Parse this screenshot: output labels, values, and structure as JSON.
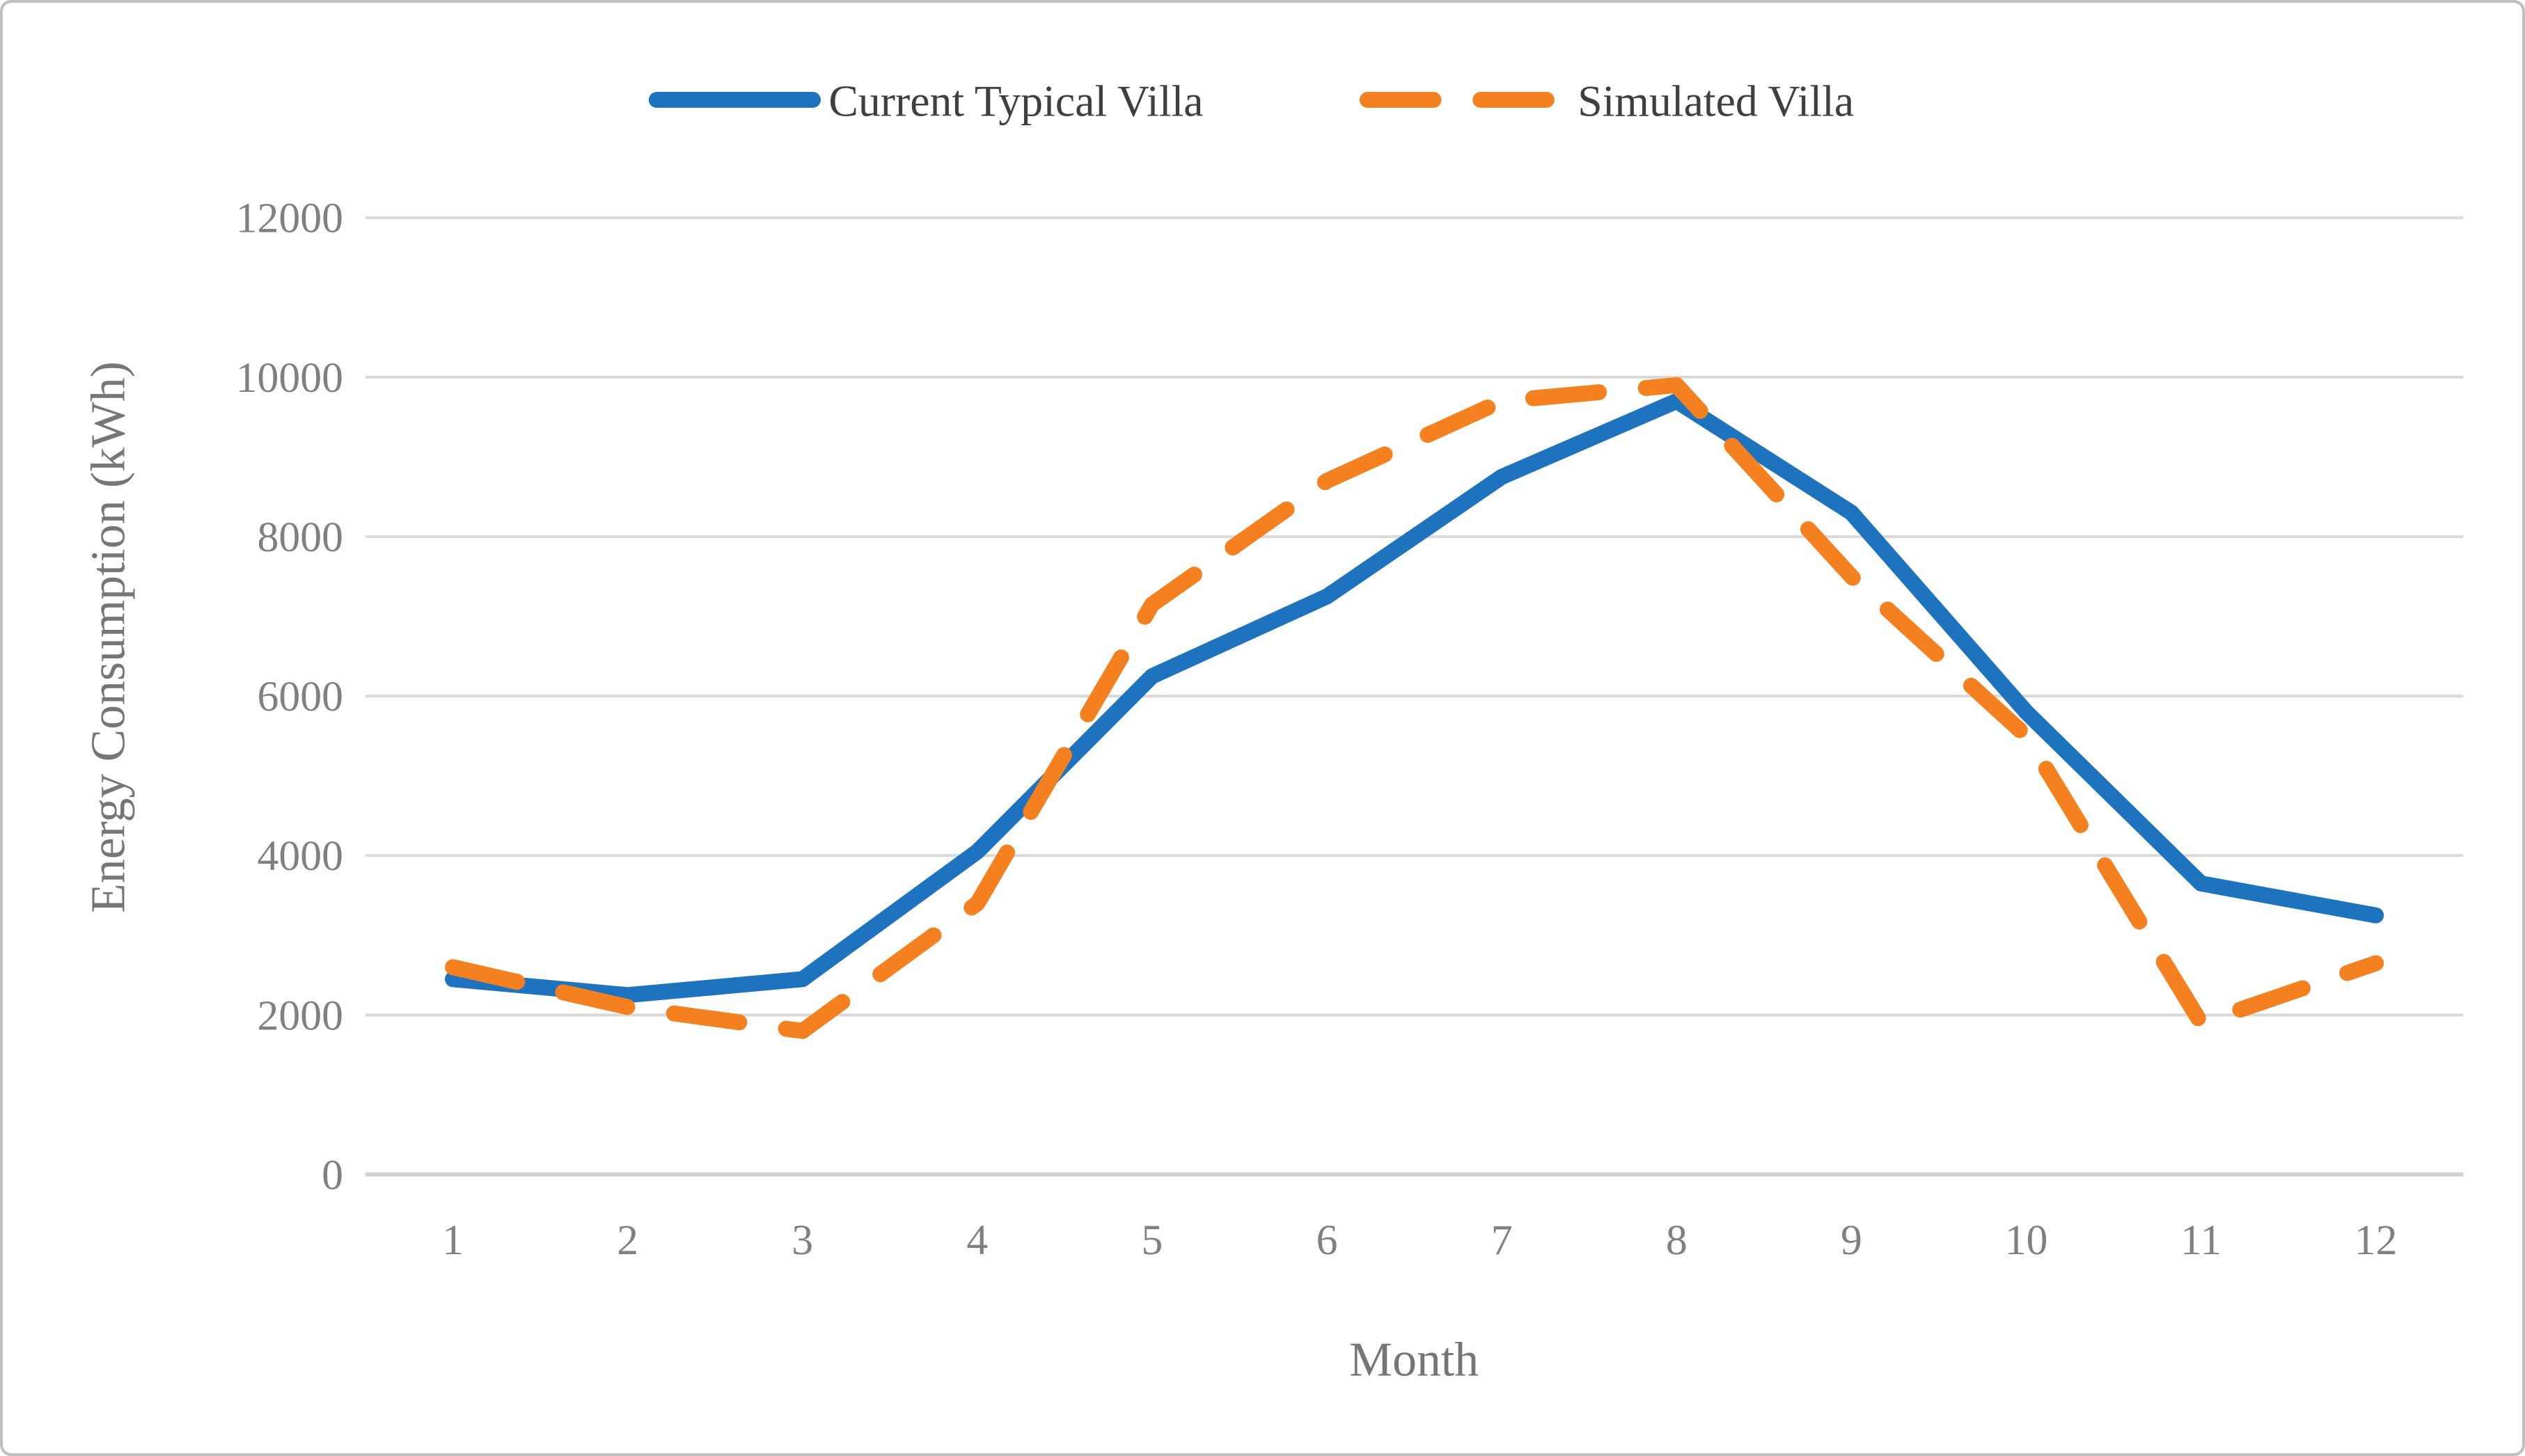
{
  "figure": {
    "background": "#ffffff",
    "border_color": "#bfbfbf"
  },
  "chart_data": {
    "type": "line",
    "title": "",
    "categories": [
      "1",
      "2",
      "3",
      "4",
      "5",
      "6",
      "7",
      "8",
      "9",
      "10",
      "11",
      "12"
    ],
    "series": [
      {
        "name": "Current Typical Villa",
        "style": "solid",
        "color": "#1e73be",
        "values": [
          2450,
          2250,
          2450,
          4050,
          6250,
          7250,
          8750,
          9700,
          8300,
          5800,
          3650,
          3250
        ]
      },
      {
        "name": "Simulated Villa",
        "style": "dashed",
        "color": "#f5801f",
        "values": [
          2600,
          2100,
          1800,
          3400,
          7150,
          8700,
          9700,
          9900,
          7500,
          5500,
          1900,
          2650
        ]
      }
    ],
    "xlabel": "Month",
    "ylabel": "Energy Consumption (kWh)",
    "ylim": [
      0,
      12000
    ],
    "yticks": [
      0,
      2000,
      4000,
      6000,
      8000,
      10000,
      12000
    ],
    "grid": "horizontal",
    "gridline_color": "#d9d9d9",
    "axisline_color": "#d2d2d2",
    "tick_label_color": "#808080",
    "axis_title_color": "#767676",
    "legend_text_color": "#3f3f3f",
    "legend_position": "top-center"
  }
}
